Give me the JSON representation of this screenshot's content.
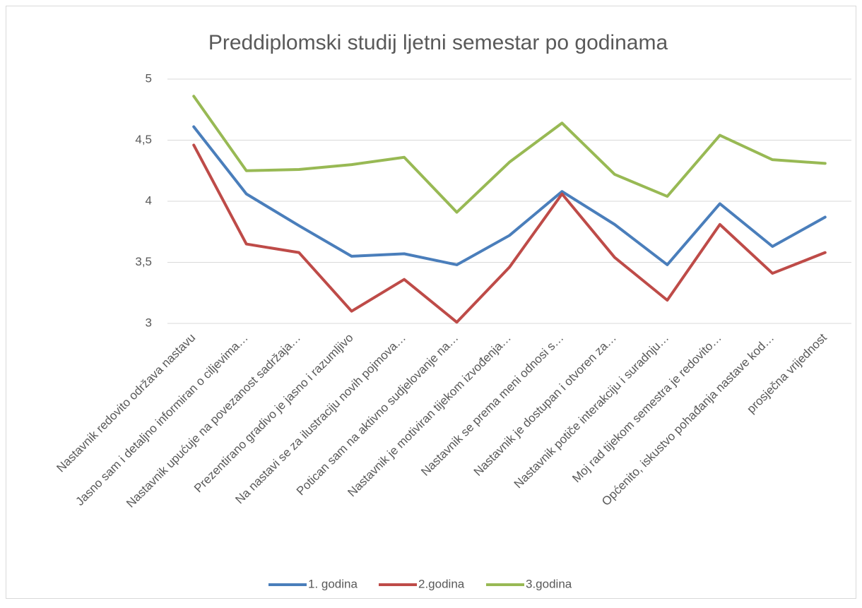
{
  "chart_data": {
    "type": "line",
    "title": "Preddiplomski studij ljetni semestar po godinama",
    "categories": [
      "Nastavnik redovito održava nastavu",
      "Jasno sam i detaljno informiran o ciljevima…",
      "Nastavnik upućuje na povezanost sadržaja…",
      "Prezentirano gradivo je jasno i razumljivo",
      "Na nastavi se za ilustraciju novih pojmova…",
      "Potican sam na aktivno sudjelovanje na…",
      "Nastavnik je motiviran tijekom izvođenja…",
      "Nastavnik se prema meni odnosi s…",
      "Nastavnik je dostupan i otvoren za…",
      "Nastavnik potiče interakciju i suradnju…",
      "Moj rad tijekom semestra je redovito…",
      "Općenito, iskustvo pohađanja nastave kod…",
      "prosječna vrijednost"
    ],
    "series": [
      {
        "name": "1. godina",
        "color": "#4a7ebb",
        "values": [
          4.61,
          4.06,
          3.8,
          3.55,
          3.57,
          3.48,
          3.72,
          4.08,
          3.81,
          3.48,
          3.98,
          3.63,
          3.87
        ]
      },
      {
        "name": "2.godina",
        "color": "#be4b48",
        "values": [
          4.46,
          3.65,
          3.58,
          3.1,
          3.36,
          3.01,
          3.46,
          4.06,
          3.54,
          3.19,
          3.81,
          3.41,
          3.58
        ]
      },
      {
        "name": "3.godina",
        "color": "#98b954",
        "values": [
          4.86,
          4.25,
          4.26,
          4.3,
          4.36,
          3.91,
          4.32,
          4.64,
          4.22,
          4.04,
          4.54,
          4.34,
          4.31
        ]
      }
    ],
    "ylim": [
      3,
      5
    ],
    "yticks": [
      3,
      {
        "value": 3.5,
        "label": "3,5"
      },
      4,
      {
        "value": 4.5,
        "label": "4,5"
      },
      5
    ],
    "grid": true,
    "legend": "bottom"
  }
}
